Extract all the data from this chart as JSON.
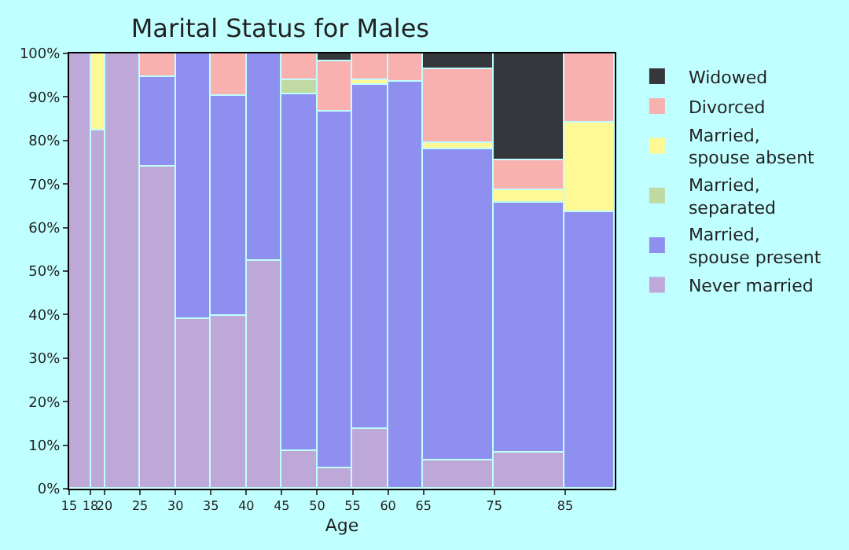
{
  "chart_data": {
    "type": "bar",
    "stacked": true,
    "title": "Marital Status for Males",
    "xlabel": "Age",
    "x": [
      16.5,
      19,
      22.5,
      27.5,
      32.5,
      37.5,
      42.5,
      47.5,
      52.5,
      57.5,
      62.5,
      70,
      80,
      88.5
    ],
    "xlim": [
      15,
      92
    ],
    "xticks": [
      15,
      18,
      20,
      25,
      30,
      35,
      40,
      45,
      50,
      55,
      60,
      65,
      75,
      85
    ],
    "ylim": [
      0,
      100
    ],
    "yticks": [
      {
        "value": 0,
        "label": "0%"
      },
      {
        "value": 10,
        "label": "10%"
      },
      {
        "value": 20,
        "label": "20%"
      },
      {
        "value": 30,
        "label": "30%"
      },
      {
        "value": 40,
        "label": "40%"
      },
      {
        "value": 50,
        "label": "50%"
      },
      {
        "value": 60,
        "label": "60%"
      },
      {
        "value": 70,
        "label": "70%"
      },
      {
        "value": 80,
        "label": "80%"
      },
      {
        "value": 90,
        "label": "90%"
      },
      {
        "value": 100,
        "label": "100%"
      }
    ],
    "legend": "right",
    "series": [
      {
        "name": "Never married",
        "color": "#bea8d8",
        "values": [
          100,
          82.2,
          100,
          74.1,
          38.9,
          39.6,
          52.4,
          8.8,
          4.8,
          13.6,
          null,
          6.6,
          8.4,
          null
        ]
      },
      {
        "name": "Married,\nspouse present",
        "color": "#8f8ff0",
        "values": [
          null,
          null,
          null,
          20.5,
          61.1,
          50.6,
          47.6,
          81.8,
          81.9,
          79.2,
          93.5,
          71.2,
          57.2,
          63.4
        ]
      },
      {
        "name": "Married,\nseparated",
        "color": "#c1d9a3",
        "values": [
          null,
          null,
          null,
          null,
          null,
          null,
          null,
          3.3,
          null,
          null,
          null,
          null,
          null,
          null
        ]
      },
      {
        "name": "Married,\nspouse absent",
        "color": "#fef995",
        "values": [
          null,
          17.8,
          null,
          null,
          null,
          null,
          null,
          null,
          null,
          1.1,
          null,
          1.5,
          3.0,
          20.6
        ]
      },
      {
        "name": "Divorced",
        "color": "#f9b1b0",
        "values": [
          null,
          null,
          null,
          5.4,
          null,
          9.8,
          null,
          6.1,
          11.6,
          6.1,
          6.5,
          17.2,
          7.0,
          16.0
        ]
      },
      {
        "name": "Widowed",
        "color": "#36373c",
        "values": [
          null,
          null,
          null,
          null,
          null,
          null,
          null,
          null,
          1.7,
          null,
          null,
          3.5,
          24.4,
          null
        ]
      }
    ]
  }
}
